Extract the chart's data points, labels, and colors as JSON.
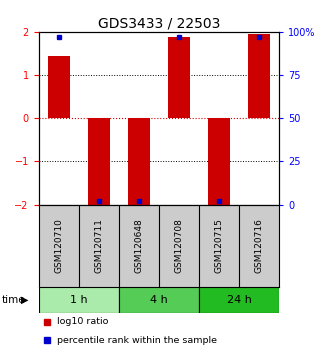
{
  "title": "GDS3433 / 22503",
  "samples": [
    "GSM120710",
    "GSM120711",
    "GSM120648",
    "GSM120708",
    "GSM120715",
    "GSM120716"
  ],
  "log10_ratio": [
    1.45,
    -2.0,
    -2.0,
    1.88,
    -2.0,
    1.95
  ],
  "blue_bar_top": [
    97,
    2,
    2,
    97,
    2,
    97
  ],
  "groups": [
    {
      "label": "1 h",
      "start": 0,
      "end": 2,
      "color": "#aaeaaa"
    },
    {
      "label": "4 h",
      "start": 2,
      "end": 4,
      "color": "#55cc55"
    },
    {
      "label": "24 h",
      "start": 4,
      "end": 6,
      "color": "#22bb22"
    }
  ],
  "ylim": [
    -2,
    2
  ],
  "right_ylim": [
    0,
    100
  ],
  "right_yticks": [
    0,
    25,
    50,
    75,
    100
  ],
  "right_yticklabels": [
    "0",
    "25",
    "50",
    "75",
    "100%"
  ],
  "left_yticks": [
    -2,
    -1,
    0,
    1,
    2
  ],
  "bar_color_red": "#cc0000",
  "bar_color_blue": "#0000cc",
  "zero_line_color": "#cc0000",
  "bg_color": "#ffffff",
  "label_fontsize": 6.5,
  "title_fontsize": 10,
  "group_label_fontsize": 8,
  "sample_header_bg": "#cccccc",
  "time_label": "time",
  "legend_red_label": "log10 ratio",
  "legend_blue_label": "percentile rank within the sample"
}
